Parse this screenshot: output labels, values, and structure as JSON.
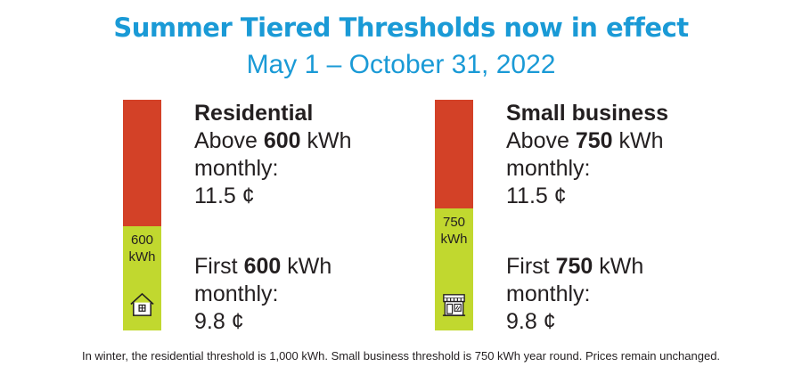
{
  "header": {
    "title": "Summer Tiered Thresholds now in effect",
    "subtitle": "May 1 – October 31, 2022"
  },
  "colors": {
    "accent": "#1a9ad6",
    "upper_tier": "#d34127",
    "lower_tier": "#c1d82f"
  },
  "residential": {
    "name": "Residential",
    "threshold": "600",
    "bar_label_value": "600",
    "bar_label_unit": "kWh",
    "icon": "house-icon",
    "upper": {
      "prefix": "Above",
      "value": "600",
      "unit": "kWh",
      "period": "monthly:",
      "price": "11.5 ¢"
    },
    "lower": {
      "prefix": "First",
      "value": "600",
      "unit": "kWh",
      "period": "monthly:",
      "price": "9.8 ¢"
    }
  },
  "small_business": {
    "name": "Small business",
    "threshold": "750",
    "bar_label_value": "750",
    "bar_label_unit": "kWh",
    "icon": "storefront-icon",
    "upper": {
      "prefix": "Above",
      "value": "750",
      "unit": "kWh",
      "period": "monthly:",
      "price": "11.5 ¢"
    },
    "lower": {
      "prefix": "First",
      "value": "750",
      "unit": "kWh",
      "period": "monthly:",
      "price": "9.8 ¢"
    }
  },
  "footnote": "In winter, the residential threshold is 1,000 kWh. Small business threshold is 750 kWh year round. Prices remain unchanged."
}
